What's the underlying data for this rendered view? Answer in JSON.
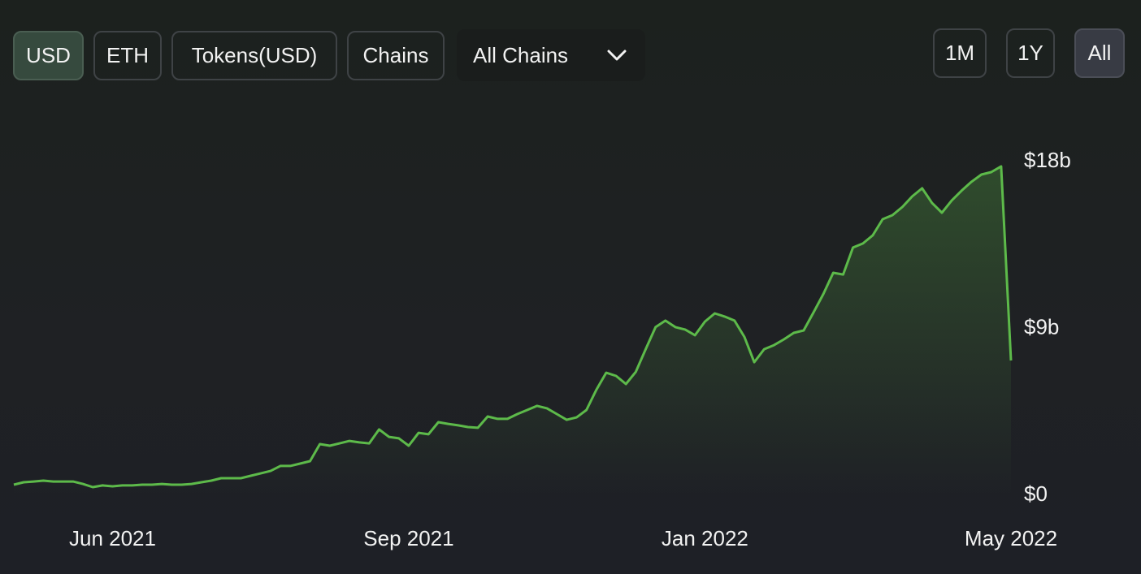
{
  "controls": {
    "currency": [
      "USD",
      "ETH",
      "Tokens(USD)",
      "Chains"
    ],
    "dropdown": "All Chains",
    "ranges": [
      "1M",
      "1Y",
      "All"
    ]
  },
  "chart_data": {
    "type": "area",
    "categories": [
      null,
      null,
      null,
      null,
      null,
      null,
      null,
      null,
      null,
      null,
      "Jun 2021",
      null,
      null,
      null,
      null,
      null,
      null,
      null,
      null,
      null,
      null,
      null,
      null,
      null,
      null,
      null,
      null,
      null,
      null,
      null,
      null,
      null,
      null,
      null,
      null,
      null,
      null,
      null,
      null,
      null,
      "Sep 2021",
      null,
      null,
      null,
      null,
      null,
      null,
      null,
      null,
      null,
      null,
      null,
      null,
      null,
      null,
      null,
      null,
      null,
      null,
      null,
      null,
      null,
      null,
      null,
      null,
      null,
      null,
      null,
      null,
      null,
      "Jan 2022",
      null,
      null,
      null,
      null,
      null,
      null,
      null,
      null,
      null,
      null,
      null,
      null,
      null,
      null,
      null,
      null,
      null,
      null,
      null,
      null,
      null,
      null,
      null,
      null,
      null,
      null,
      null,
      null,
      null,
      null,
      "May 2022"
    ],
    "values": [
      0.57,
      0.7,
      0.74,
      0.79,
      0.74,
      0.74,
      0.74,
      0.61,
      0.44,
      0.53,
      0.48,
      0.53,
      0.53,
      0.57,
      0.57,
      0.61,
      0.57,
      0.57,
      0.61,
      0.7,
      0.79,
      0.92,
      0.92,
      0.92,
      1.05,
      1.18,
      1.31,
      1.58,
      1.58,
      1.71,
      1.84,
      2.76,
      2.67,
      2.8,
      2.93,
      2.85,
      2.8,
      3.55,
      3.15,
      3.07,
      2.67,
      3.37,
      3.29,
      3.94,
      3.85,
      3.77,
      3.68,
      3.64,
      4.25,
      4.12,
      4.12,
      4.38,
      4.6,
      4.82,
      4.69,
      4.38,
      4.07,
      4.2,
      4.6,
      5.69,
      6.61,
      6.44,
      6.0,
      6.66,
      7.88,
      9.07,
      9.42,
      9.07,
      8.94,
      8.63,
      9.37,
      9.81,
      9.64,
      9.42,
      8.54,
      7.18,
      7.88,
      8.1,
      8.41,
      8.76,
      8.89,
      9.86,
      10.86,
      12.0,
      11.91,
      13.36,
      13.58,
      14.02,
      14.89,
      15.11,
      15.55,
      16.12,
      16.56,
      15.77,
      15.24,
      15.9,
      16.43,
      16.91,
      17.3,
      17.43,
      17.74,
      7.27
    ],
    "color": "#5dba4a",
    "ylim": [
      0,
      18
    ],
    "yticks": [
      {
        "value": 0,
        "label": "$0"
      },
      {
        "value": 9,
        "label": "$9b"
      },
      {
        "value": 18,
        "label": "$18b"
      }
    ],
    "grid": false
  }
}
